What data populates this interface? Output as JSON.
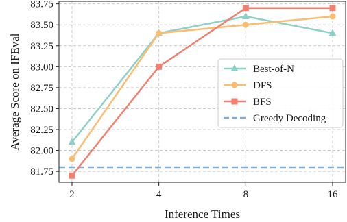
{
  "chart_data": {
    "type": "line",
    "title": "",
    "xlabel": "Inference Times",
    "ylabel": "Average Score on IFEval",
    "categories": [
      "2",
      "4",
      "8",
      "16"
    ],
    "y_ticks": [
      "81.75",
      "82.00",
      "82.25",
      "82.50",
      "82.75",
      "83.00",
      "83.25",
      "83.50",
      "83.75"
    ],
    "ylim": [
      81.62,
      83.78
    ],
    "grid": true,
    "legend_position": "center-right",
    "series": [
      {
        "name": "Best-of-N",
        "values": [
          82.1,
          83.4,
          83.6,
          83.4
        ],
        "color": "#8fd0c6",
        "marker": "triangle"
      },
      {
        "name": "DFS",
        "values": [
          81.9,
          83.4,
          83.5,
          83.6
        ],
        "color": "#f9bd72",
        "marker": "circle"
      },
      {
        "name": "BFS",
        "values": [
          81.7,
          83.0,
          83.7,
          83.7
        ],
        "color": "#f08070",
        "marker": "square"
      }
    ],
    "reference_lines": [
      {
        "name": "Greedy Decoding",
        "value": 81.8,
        "color": "#7fb0d3",
        "style": "dashed"
      }
    ]
  }
}
